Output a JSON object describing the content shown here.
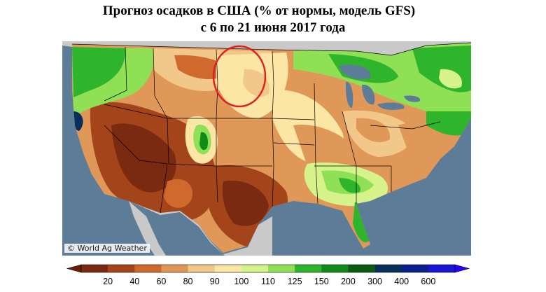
{
  "title": {
    "line1": "Прогноз осадков в США (% от нормы, модель GFS)",
    "line2": "с 6  по 21 июня 2017 года"
  },
  "credit": "© World Ag Weather",
  "legend": {
    "bins": [
      {
        "color": "#7a2a10"
      },
      {
        "color": "#a3441a"
      },
      {
        "color": "#cf6a2c"
      },
      {
        "color": "#e09858"
      },
      {
        "color": "#f2c88a"
      },
      {
        "color": "#fbe6a6"
      },
      {
        "color": "#d6f28a"
      },
      {
        "color": "#8fe055"
      },
      {
        "color": "#2fb52c"
      },
      {
        "color": "#118a1c"
      },
      {
        "color": "#0b5c12"
      },
      {
        "color": "#0a2e5a"
      },
      {
        "color": "#0a1f8c"
      },
      {
        "color": "#1a14d4"
      }
    ],
    "ticks": [
      "20",
      "40",
      "60",
      "80",
      "90",
      "100",
      "110",
      "125",
      "150",
      "200",
      "300",
      "400",
      "600"
    ],
    "under_color": "#6a1c08",
    "over_color": "#2400ff"
  },
  "colors": {
    "ocean": "#5d7c97",
    "land_outside": "#c9c9c9",
    "highlight_circle": "#e02020"
  }
}
